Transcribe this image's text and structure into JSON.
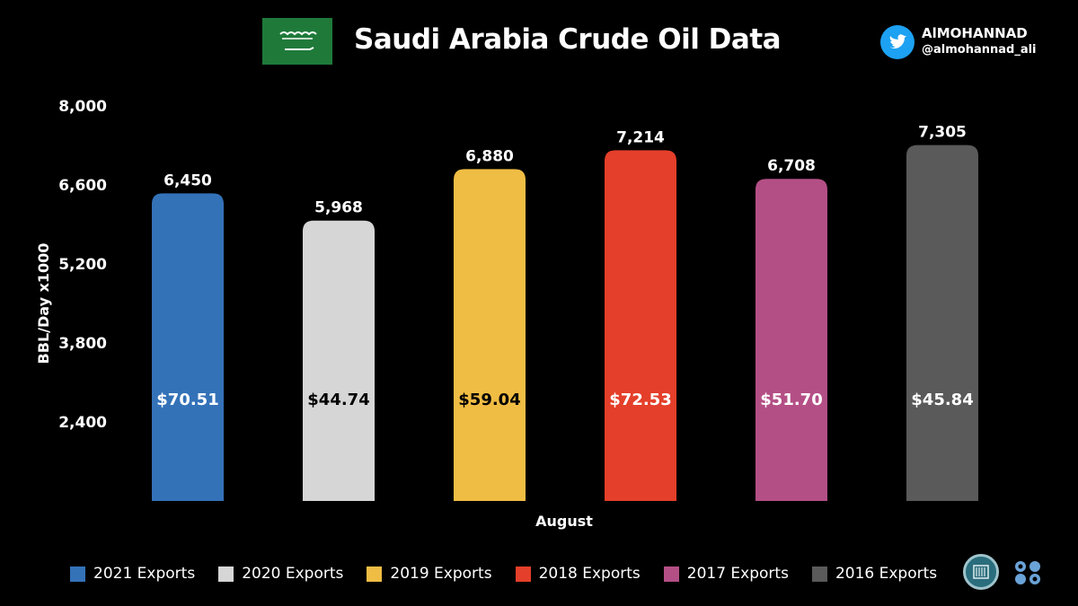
{
  "header": {
    "title": "Saudi Arabia Crude Oil Data",
    "brand_name": "AlMOHANNAD",
    "brand_handle": "@almohannad_ali"
  },
  "colors": {
    "background": "#000000",
    "text": "#ffffff",
    "flag_green": "#1f7a3a",
    "twitter_blue": "#1da1f2"
  },
  "icons": {
    "flag": "saudi-flag-icon",
    "twitter": "twitter-bird-icon",
    "logo_left": "institution-seal-icon",
    "logo_right": "opec-logo-icon"
  },
  "chart_data": {
    "type": "bar",
    "title": "Saudi Arabia Crude Oil Data",
    "xlabel": "August",
    "ylabel": "BBL/Day x1000",
    "ylim": [
      1000,
      8000
    ],
    "yticks": [
      2400,
      3800,
      5200,
      6600,
      8000
    ],
    "ytick_labels": [
      "2,400",
      "3,800",
      "5,200",
      "6,600",
      "8,000"
    ],
    "grid": false,
    "legend_position": "bottom",
    "series": [
      {
        "name": "2021 Exports",
        "value": 6450,
        "value_label": "6,450",
        "price": "$70.51",
        "color": "#3472b8",
        "label_color": "#ffffff"
      },
      {
        "name": "2020 Exports",
        "value": 5968,
        "value_label": "5,968",
        "price": "$44.74",
        "color": "#d6d6d6",
        "label_color": "#000000"
      },
      {
        "name": "2019 Exports",
        "value": 6880,
        "value_label": "6,880",
        "price": "$59.04",
        "color": "#f0bd44",
        "label_color": "#000000"
      },
      {
        "name": "2018 Exports",
        "value": 7214,
        "value_label": "7,214",
        "price": "$72.53",
        "color": "#e43f2a",
        "label_color": "#ffffff"
      },
      {
        "name": "2017 Exports",
        "value": 6708,
        "value_label": "6,708",
        "price": "$51.70",
        "color": "#b44f86",
        "label_color": "#ffffff"
      },
      {
        "name": "2016 Exports",
        "value": 7305,
        "value_label": "7,305",
        "price": "$45.84",
        "color": "#5a5a5a",
        "label_color": "#ffffff"
      }
    ]
  }
}
